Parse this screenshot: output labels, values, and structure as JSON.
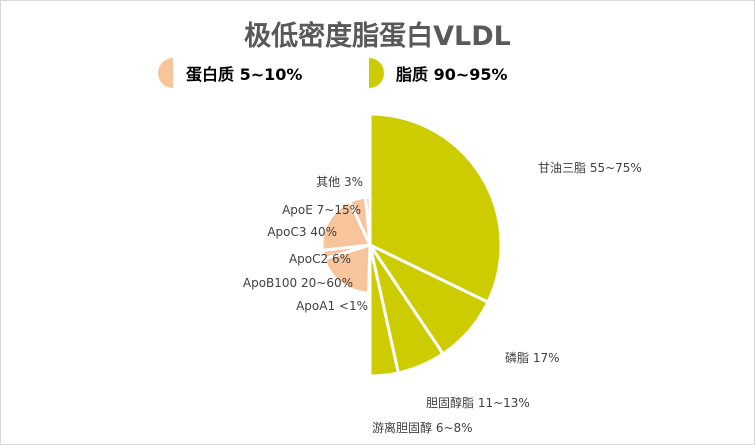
{
  "chart_data": {
    "type": "pie",
    "title": "极低密度脂蛋白VLDL",
    "legend": [
      {
        "name": "蛋白质 5~10%",
        "color": "#F8C49C"
      },
      {
        "name": "脂质 90~95%",
        "color": "#CCCC00"
      }
    ],
    "series": [
      {
        "name": "蛋白质 5~10%",
        "color": "#F8C49C",
        "slices": [
          {
            "label": "ApoA1  <1%",
            "value": 1
          },
          {
            "label": "ApoB100 20~60%",
            "value": 40
          },
          {
            "label": "ApoC2 6%",
            "value": 6
          },
          {
            "label": "ApoC3 40%",
            "value": 40
          },
          {
            "label": "ApoE 7~15%",
            "value": 11
          },
          {
            "label": "其他 3%",
            "value": 3
          }
        ]
      },
      {
        "name": "脂质 90~95%",
        "color": "#CCCC00",
        "slices": [
          {
            "label": "甘油三脂 55~75%",
            "value": 65
          },
          {
            "label": "磷脂 17%",
            "value": 17
          },
          {
            "label": "胆固醇脂 11~13%",
            "value": 12
          },
          {
            "label": "游离胆固醇 6~8%",
            "value": 7
          }
        ]
      }
    ]
  }
}
